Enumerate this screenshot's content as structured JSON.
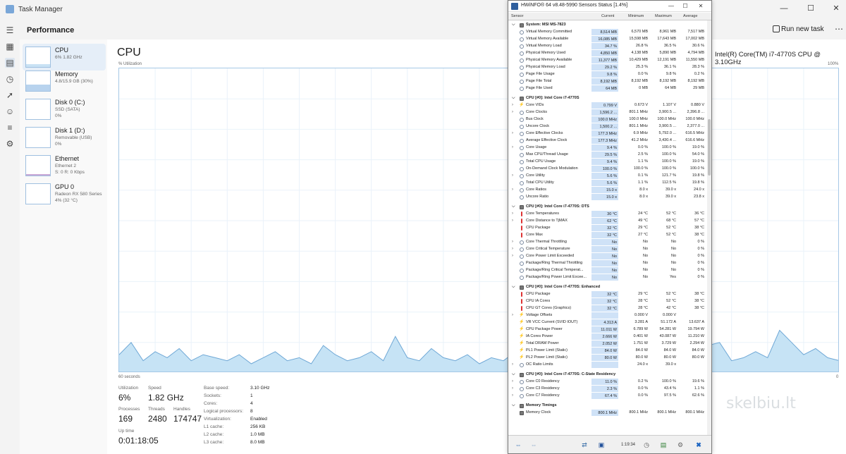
{
  "taskmanager": {
    "title": "Task Manager",
    "section": "Performance",
    "run_new_task": "Run new task",
    "devices": [
      {
        "name": "CPU",
        "sub1": "6% 1.82 GHz",
        "sub2": ""
      },
      {
        "name": "Memory",
        "sub1": "4.8/15.9 GB (30%)",
        "sub2": ""
      },
      {
        "name": "Disk 0 (C:)",
        "sub1": "SSD (SATA)",
        "sub2": "0%"
      },
      {
        "name": "Disk 1 (D:)",
        "sub1": "Removable (USB)",
        "sub2": "0%"
      },
      {
        "name": "Ethernet",
        "sub1": "Ethernet 2",
        "sub2": "S: 0 R: 0 Kbps"
      },
      {
        "name": "GPU 0",
        "sub1": "Radeon RX 580 Series",
        "sub2": "4% (32 °C)"
      }
    ],
    "cpu": {
      "title": "CPU",
      "name": "Intel(R) Core(TM) i7-4770S CPU @ 3.10GHz",
      "util_label": "% Utilization",
      "util_max": "100%",
      "footer_left": "60 seconds",
      "footer_right": "0",
      "graph_values": [
        6,
        10,
        4,
        7,
        5,
        8,
        4,
        6,
        5,
        4,
        6,
        3,
        5,
        7,
        4,
        5,
        3,
        9,
        6,
        4,
        5,
        7,
        4,
        12,
        5,
        4,
        8,
        5,
        4,
        6,
        3,
        5,
        4,
        7,
        5,
        4,
        6,
        5,
        4,
        7,
        8,
        5,
        4,
        6,
        5,
        7,
        5,
        6,
        4,
        9,
        10,
        4,
        5,
        7,
        5,
        14,
        10,
        6,
        8,
        5,
        4
      ],
      "graph_max": 100,
      "stats": {
        "utilization_label": "Utilization",
        "utilization": "6%",
        "speed_label": "Speed",
        "speed": "1.82 GHz",
        "processes_label": "Processes",
        "processes": "169",
        "threads_label": "Threads",
        "threads": "2480",
        "handles_label": "Handles",
        "handles": "174747",
        "uptime_label": "Up time",
        "uptime": "0:01:18:05"
      },
      "specs": [
        {
          "label": "Base speed:",
          "value": "3.10 GHz"
        },
        {
          "label": "Sockets:",
          "value": "1"
        },
        {
          "label": "Cores:",
          "value": "4"
        },
        {
          "label": "Logical processors:",
          "value": "8"
        },
        {
          "label": "Virtualization:",
          "value": "Enabled"
        },
        {
          "label": "L1 cache:",
          "value": "256 KB"
        },
        {
          "label": "L2 cache:",
          "value": "1.0 MB"
        },
        {
          "label": "L3 cache:",
          "value": "8.0 MB"
        }
      ]
    }
  },
  "hwinfo": {
    "title": "HWiNFO® 64 v8.48-5990 Sensors Status [1.4%]",
    "columns": {
      "sensor": "Sensor",
      "current": "Current",
      "minimum": "Minimum",
      "maximum": "Maximum",
      "average": "Average"
    },
    "toolbar_time": "1:19:34",
    "rows": [
      {
        "t": "group",
        "label": "System: MSI MS-7823"
      },
      {
        "t": "row",
        "icon": "circle",
        "label": "Virtual Memory Committed",
        "cur": "8,514 MB",
        "min": "6,570 MB",
        "max": "8,961 MB",
        "avg": "7,517 MB"
      },
      {
        "t": "row",
        "icon": "circle",
        "label": "Virtual Memory Available",
        "cur": "16,085 MB",
        "min": "15,598 MB",
        "max": "17,643 MB",
        "avg": "17,002 MB"
      },
      {
        "t": "row",
        "icon": "circle",
        "label": "Virtual Memory Load",
        "cur": "34.7 %",
        "min": "26.8 %",
        "max": "36.5 %",
        "avg": "30.6 %"
      },
      {
        "t": "row",
        "icon": "circle",
        "label": "Physical Memory Used",
        "cur": "4,850 MB",
        "min": "4,138 MB",
        "max": "5,890 MB",
        "avg": "4,794 MB"
      },
      {
        "t": "row",
        "icon": "circle",
        "label": "Physical Memory Available",
        "cur": "11,377 MB",
        "min": "10,429 MB",
        "max": "12,191 MB",
        "avg": "11,550 MB"
      },
      {
        "t": "row",
        "icon": "circle",
        "label": "Physical Memory Load",
        "cur": "29.2 %",
        "min": "25.3 %",
        "max": "36.1 %",
        "avg": "28.3 %"
      },
      {
        "t": "row",
        "icon": "circle",
        "label": "Page File Usage",
        "cur": "9.8 %",
        "min": "0.0 %",
        "max": "9.8 %",
        "avg": "0.2 %"
      },
      {
        "t": "row",
        "icon": "circle",
        "label": "Page File Total",
        "cur": "8,192 MB",
        "min": "8,192 MB",
        "max": "8,192 MB",
        "avg": "8,192 MB"
      },
      {
        "t": "row",
        "icon": "circle",
        "label": "Page File Used",
        "cur": "64 MB",
        "min": "0 MB",
        "max": "64 MB",
        "avg": "29 MB"
      },
      {
        "t": "spacer"
      },
      {
        "t": "group",
        "label": "CPU [#0]: Intel Core i7-4770S"
      },
      {
        "t": "row",
        "exp": true,
        "icon": "warn",
        "label": "Core VIDs",
        "cur": "0.799 V",
        "min": "0.673 V",
        "max": "1.107 V",
        "avg": "0.880 V"
      },
      {
        "t": "row",
        "exp": true,
        "icon": "circle",
        "label": "Core Clocks",
        "cur": "1,596.2 ...",
        "min": "801.1 MHz",
        "max": "3,900.5 ...",
        "avg": "2,396.8 ..."
      },
      {
        "t": "row",
        "icon": "circle",
        "label": "Bus Clock",
        "cur": "100.0 MHz",
        "min": "100.0 MHz",
        "max": "100.0 MHz",
        "avg": "100.0 MHz"
      },
      {
        "t": "row",
        "icon": "circle",
        "label": "Uncore Clock",
        "cur": "1,500.2 ...",
        "min": "801.1 MHz",
        "max": "3,900.5 ...",
        "avg": "2,377.0 ..."
      },
      {
        "t": "row",
        "exp": true,
        "icon": "circle",
        "label": "Core Effective Clocks",
        "cur": "177.3 MHz",
        "min": "6.9 MHz",
        "max": "5,792.0 ...",
        "avg": "616.5 MHz"
      },
      {
        "t": "row",
        "icon": "circle",
        "label": "Average Effective Clock",
        "cur": "177.3 MHz",
        "min": "41.2 MHz",
        "max": "3,430.4 ...",
        "avg": "616.6 MHz"
      },
      {
        "t": "row",
        "exp": true,
        "icon": "circle",
        "label": "Core Usage",
        "cur": "9.4 %",
        "min": "0.0 %",
        "max": "100.0 %",
        "avg": "19.0 %"
      },
      {
        "t": "row",
        "icon": "circle",
        "label": "Max CPU/Thread Usage",
        "cur": "29.5 %",
        "min": "2.5 %",
        "max": "100.0 %",
        "avg": "54.0 %"
      },
      {
        "t": "row",
        "icon": "circle",
        "label": "Total CPU Usage",
        "cur": "9.4 %",
        "min": "1.1 %",
        "max": "100.0 %",
        "avg": "19.0 %"
      },
      {
        "t": "row",
        "icon": "circle",
        "label": "On-Demand Clock Modulation",
        "cur": "100.0 %",
        "min": "100.0 %",
        "max": "100.0 %",
        "avg": "100.0 %"
      },
      {
        "t": "row",
        "exp": true,
        "icon": "circle",
        "label": "Core Utility",
        "cur": "5.6 %",
        "min": "0.1 %",
        "max": "121.7 %",
        "avg": "19.8 %"
      },
      {
        "t": "row",
        "icon": "circle",
        "label": "Total CPU Utility",
        "cur": "5.6 %",
        "min": "1.1 %",
        "max": "112.5 %",
        "avg": "19.8 %"
      },
      {
        "t": "row",
        "exp": true,
        "icon": "circle",
        "label": "Core Ratios",
        "cur": "15.0 x",
        "min": "8.0 x",
        "max": "39.0 x",
        "avg": "24.0 x"
      },
      {
        "t": "row",
        "icon": "circle",
        "label": "Uncore Ratio",
        "cur": "15.0 x",
        "min": "8.0 x",
        "max": "39.0 x",
        "avg": "23.8 x"
      },
      {
        "t": "spacer"
      },
      {
        "t": "group",
        "label": "CPU [#0]: Intel Core i7-4770S: DTS"
      },
      {
        "t": "row",
        "exp": true,
        "icon": "temp",
        "label": "Core Temperatures",
        "cur": "30 °C",
        "min": "24 °C",
        "max": "52 °C",
        "avg": "36 °C"
      },
      {
        "t": "row",
        "exp": true,
        "icon": "temp",
        "label": "Core Distance to TjMAX",
        "cur": "62 °C",
        "min": "49 °C",
        "max": "68 °C",
        "avg": "57 °C"
      },
      {
        "t": "row",
        "icon": "temp",
        "label": "CPU Package",
        "cur": "32 °C",
        "min": "29 °C",
        "max": "52 °C",
        "avg": "38 °C"
      },
      {
        "t": "row",
        "icon": "temp",
        "label": "Core Max",
        "cur": "32 °C",
        "min": "27 °C",
        "max": "52 °C",
        "avg": "38 °C"
      },
      {
        "t": "row",
        "exp": true,
        "icon": "circle",
        "label": "Core Thermal Throttling",
        "cur": "No",
        "min": "No",
        "max": "No",
        "avg": "0 %"
      },
      {
        "t": "row",
        "exp": true,
        "icon": "circle",
        "label": "Core Critical Temperature",
        "cur": "No",
        "min": "No",
        "max": "No",
        "avg": "0 %"
      },
      {
        "t": "row",
        "exp": true,
        "icon": "circle",
        "label": "Core Power Limit Exceeded",
        "cur": "No",
        "min": "No",
        "max": "No",
        "avg": "0 %"
      },
      {
        "t": "row",
        "icon": "circle",
        "label": "Package/Ring Thermal Throttling",
        "cur": "No",
        "min": "No",
        "max": "No",
        "avg": "0 %"
      },
      {
        "t": "row",
        "icon": "circle",
        "label": "Package/Ring Critical Temperat...",
        "cur": "No",
        "min": "No",
        "max": "No",
        "avg": "0 %"
      },
      {
        "t": "row",
        "icon": "circle",
        "label": "Package/Ring Power Limit Excee...",
        "cur": "No",
        "min": "No",
        "max": "Yes",
        "avg": "0 %"
      },
      {
        "t": "spacer"
      },
      {
        "t": "group",
        "label": "CPU [#0]: Intel Core i7-4770S: Enhanced"
      },
      {
        "t": "row",
        "icon": "temp",
        "label": "CPU Package",
        "cur": "32 °C",
        "min": "29 °C",
        "max": "52 °C",
        "avg": "38 °C"
      },
      {
        "t": "row",
        "icon": "temp",
        "label": "CPU IA Cores",
        "cur": "32 °C",
        "min": "28 °C",
        "max": "52 °C",
        "avg": "38 °C"
      },
      {
        "t": "row",
        "icon": "temp",
        "label": "CPU GT Cores (Graphics)",
        "cur": "32 °C",
        "min": "28 °C",
        "max": "42 °C",
        "avg": "38 °C"
      },
      {
        "t": "row",
        "exp": true,
        "icon": "warn",
        "label": "Voltage Offsets",
        "cur": "",
        "min": "0.000 V",
        "max": "0.000 V",
        "avg": ""
      },
      {
        "t": "row",
        "icon": "warn",
        "label": "VR VCC Current (SVID IOUT)",
        "cur": "4.313 A",
        "min": "3.281 A",
        "max": "51.172 A",
        "avg": "13.637 A"
      },
      {
        "t": "row",
        "icon": "warn",
        "label": "CPU Package Power",
        "cur": "11.011 W",
        "min": "6.789 W",
        "max": "54.281 W",
        "avg": "19.794 W"
      },
      {
        "t": "row",
        "icon": "warn",
        "label": "IA Cores Power",
        "cur": "2.666 W",
        "min": "0.401 W",
        "max": "43.087 W",
        "avg": "11.210 W"
      },
      {
        "t": "row",
        "icon": "warn",
        "label": "Total DRAM Power",
        "cur": "2.052 W",
        "min": "1.751 W",
        "max": "3.729 W",
        "avg": "2.294 W"
      },
      {
        "t": "row",
        "icon": "warn",
        "label": "PL1 Power Limit (Static)",
        "cur": "84.0 W",
        "min": "84.0 W",
        "max": "84.0 W",
        "avg": "84.0 W"
      },
      {
        "t": "row",
        "icon": "warn",
        "label": "PL2 Power Limit (Static)",
        "cur": "80.0 W",
        "min": "80.0 W",
        "max": "80.0 W",
        "avg": "80.0 W"
      },
      {
        "t": "row",
        "exp": true,
        "icon": "circle",
        "label": "OC Ratio Limits",
        "cur": "",
        "min": "24.0 x",
        "max": "39.0 x",
        "avg": ""
      },
      {
        "t": "spacer"
      },
      {
        "t": "group",
        "label": "CPU [#0]: Intel Core i7-4770S: C-State Residency"
      },
      {
        "t": "row",
        "exp": true,
        "icon": "circle",
        "label": "Core C0 Residency",
        "cur": "11.0 %",
        "min": "0.2 %",
        "max": "100.0 %",
        "avg": "19.6 %"
      },
      {
        "t": "row",
        "exp": true,
        "icon": "circle",
        "label": "Core C3 Residency",
        "cur": "2.3 %",
        "min": "0.0 %",
        "max": "43.4 %",
        "avg": "1.1 %"
      },
      {
        "t": "row",
        "exp": true,
        "icon": "circle",
        "label": "Core C7 Residency",
        "cur": "67.4 %",
        "min": "0.0 %",
        "max": "97.5 %",
        "avg": "62.6 %"
      },
      {
        "t": "spacer"
      },
      {
        "t": "group",
        "label": "Memory Timings"
      },
      {
        "t": "row",
        "icon": "chip",
        "label": "Memory Clock",
        "cur": "800.1 MHz",
        "min": "800.1 MHz",
        "max": "800.1 MHz",
        "avg": "800.1 MHz"
      }
    ]
  },
  "watermark": "skelbiu.lt"
}
